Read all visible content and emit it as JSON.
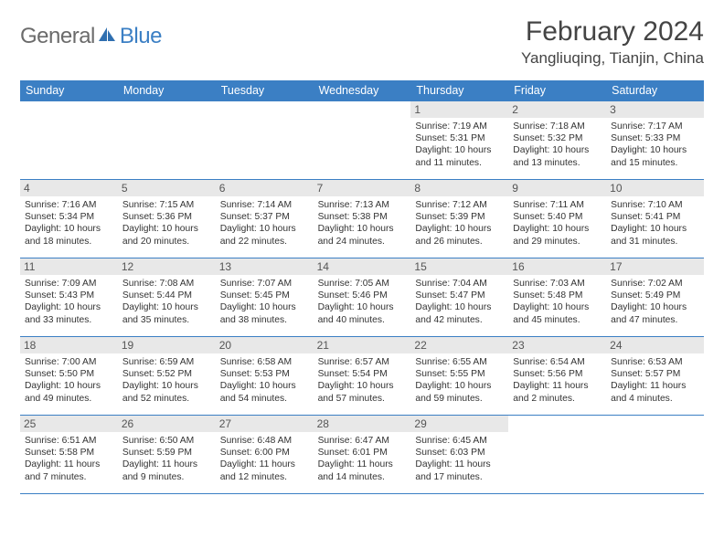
{
  "logo": {
    "word1": "General",
    "word2": "Blue"
  },
  "header": {
    "title": "February 2024",
    "location": "Yangliuqing, Tianjin, China"
  },
  "weekdays": [
    "Sunday",
    "Monday",
    "Tuesday",
    "Wednesday",
    "Thursday",
    "Friday",
    "Saturday"
  ],
  "colors": {
    "accent": "#3b7fc4",
    "daynum_bg": "#e8e8e8",
    "text": "#333333",
    "logo_gray": "#6b6b6b"
  },
  "layout": {
    "leading_blanks": 4
  },
  "days": [
    {
      "n": "1",
      "sunrise": "7:19 AM",
      "sunset": "5:31 PM",
      "daylight": "10 hours and 11 minutes."
    },
    {
      "n": "2",
      "sunrise": "7:18 AM",
      "sunset": "5:32 PM",
      "daylight": "10 hours and 13 minutes."
    },
    {
      "n": "3",
      "sunrise": "7:17 AM",
      "sunset": "5:33 PM",
      "daylight": "10 hours and 15 minutes."
    },
    {
      "n": "4",
      "sunrise": "7:16 AM",
      "sunset": "5:34 PM",
      "daylight": "10 hours and 18 minutes."
    },
    {
      "n": "5",
      "sunrise": "7:15 AM",
      "sunset": "5:36 PM",
      "daylight": "10 hours and 20 minutes."
    },
    {
      "n": "6",
      "sunrise": "7:14 AM",
      "sunset": "5:37 PM",
      "daylight": "10 hours and 22 minutes."
    },
    {
      "n": "7",
      "sunrise": "7:13 AM",
      "sunset": "5:38 PM",
      "daylight": "10 hours and 24 minutes."
    },
    {
      "n": "8",
      "sunrise": "7:12 AM",
      "sunset": "5:39 PM",
      "daylight": "10 hours and 26 minutes."
    },
    {
      "n": "9",
      "sunrise": "7:11 AM",
      "sunset": "5:40 PM",
      "daylight": "10 hours and 29 minutes."
    },
    {
      "n": "10",
      "sunrise": "7:10 AM",
      "sunset": "5:41 PM",
      "daylight": "10 hours and 31 minutes."
    },
    {
      "n": "11",
      "sunrise": "7:09 AM",
      "sunset": "5:43 PM",
      "daylight": "10 hours and 33 minutes."
    },
    {
      "n": "12",
      "sunrise": "7:08 AM",
      "sunset": "5:44 PM",
      "daylight": "10 hours and 35 minutes."
    },
    {
      "n": "13",
      "sunrise": "7:07 AM",
      "sunset": "5:45 PM",
      "daylight": "10 hours and 38 minutes."
    },
    {
      "n": "14",
      "sunrise": "7:05 AM",
      "sunset": "5:46 PM",
      "daylight": "10 hours and 40 minutes."
    },
    {
      "n": "15",
      "sunrise": "7:04 AM",
      "sunset": "5:47 PM",
      "daylight": "10 hours and 42 minutes."
    },
    {
      "n": "16",
      "sunrise": "7:03 AM",
      "sunset": "5:48 PM",
      "daylight": "10 hours and 45 minutes."
    },
    {
      "n": "17",
      "sunrise": "7:02 AM",
      "sunset": "5:49 PM",
      "daylight": "10 hours and 47 minutes."
    },
    {
      "n": "18",
      "sunrise": "7:00 AM",
      "sunset": "5:50 PM",
      "daylight": "10 hours and 49 minutes."
    },
    {
      "n": "19",
      "sunrise": "6:59 AM",
      "sunset": "5:52 PM",
      "daylight": "10 hours and 52 minutes."
    },
    {
      "n": "20",
      "sunrise": "6:58 AM",
      "sunset": "5:53 PM",
      "daylight": "10 hours and 54 minutes."
    },
    {
      "n": "21",
      "sunrise": "6:57 AM",
      "sunset": "5:54 PM",
      "daylight": "10 hours and 57 minutes."
    },
    {
      "n": "22",
      "sunrise": "6:55 AM",
      "sunset": "5:55 PM",
      "daylight": "10 hours and 59 minutes."
    },
    {
      "n": "23",
      "sunrise": "6:54 AM",
      "sunset": "5:56 PM",
      "daylight": "11 hours and 2 minutes."
    },
    {
      "n": "24",
      "sunrise": "6:53 AM",
      "sunset": "5:57 PM",
      "daylight": "11 hours and 4 minutes."
    },
    {
      "n": "25",
      "sunrise": "6:51 AM",
      "sunset": "5:58 PM",
      "daylight": "11 hours and 7 minutes."
    },
    {
      "n": "26",
      "sunrise": "6:50 AM",
      "sunset": "5:59 PM",
      "daylight": "11 hours and 9 minutes."
    },
    {
      "n": "27",
      "sunrise": "6:48 AM",
      "sunset": "6:00 PM",
      "daylight": "11 hours and 12 minutes."
    },
    {
      "n": "28",
      "sunrise": "6:47 AM",
      "sunset": "6:01 PM",
      "daylight": "11 hours and 14 minutes."
    },
    {
      "n": "29",
      "sunrise": "6:45 AM",
      "sunset": "6:03 PM",
      "daylight": "11 hours and 17 minutes."
    }
  ],
  "labels": {
    "sunrise": "Sunrise: ",
    "sunset": "Sunset: ",
    "daylight": "Daylight: "
  }
}
